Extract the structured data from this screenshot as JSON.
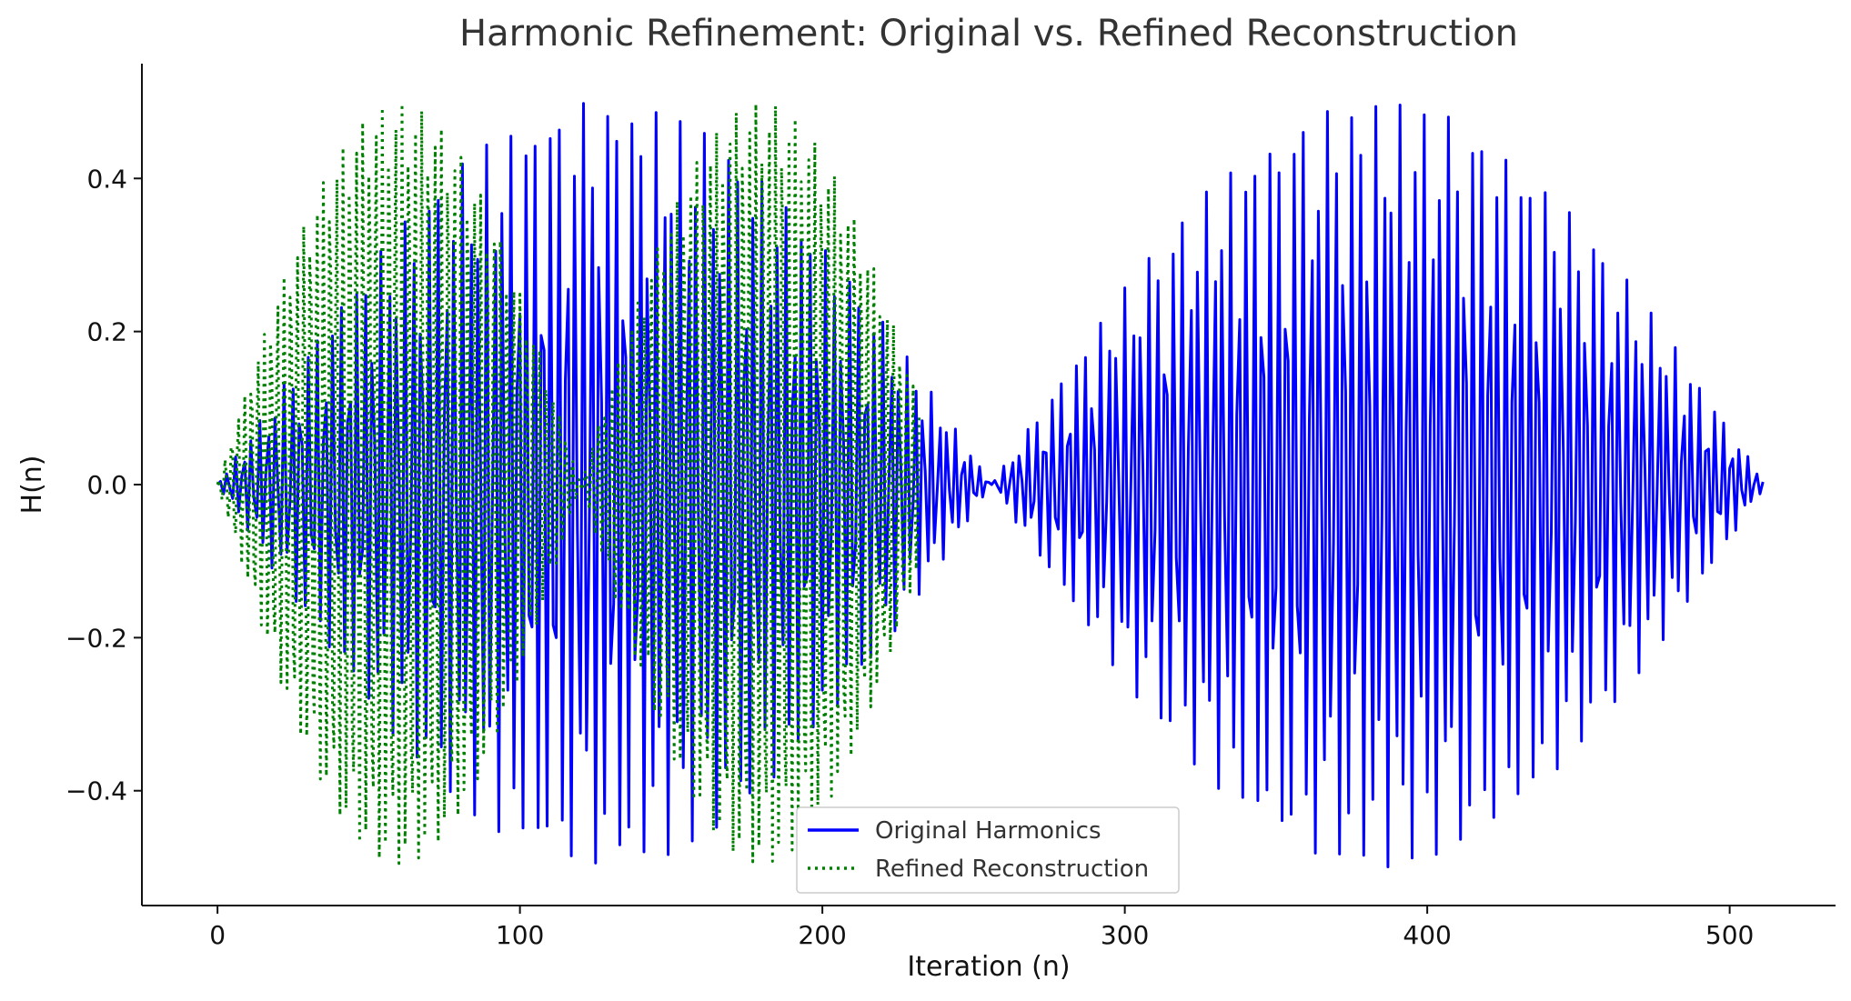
{
  "chart_data": {
    "type": "line",
    "title": "Harmonic Refinement: Original vs. Refined Reconstruction",
    "xlabel": "Iteration (n)",
    "ylabel": "H(n)",
    "xlim": [
      -25,
      535
    ],
    "ylim": [
      -0.55,
      0.55
    ],
    "xticks": [
      0,
      100,
      200,
      300,
      400,
      500
    ],
    "xtick_labels": [
      "0",
      "100",
      "200",
      "300",
      "400",
      "500"
    ],
    "yticks": [
      -0.4,
      -0.2,
      0.0,
      0.2,
      0.4
    ],
    "ytick_labels": [
      "−0.4",
      "−0.2",
      "0.0",
      "0.2",
      "0.4"
    ],
    "grid": false,
    "legend": "lower-center",
    "series": [
      {
        "name": "Original Harmonics",
        "color": "#0000ff",
        "style": "solid",
        "envelope": "0.5*|sin(pi*n/256)|",
        "n_range": [
          0,
          511
        ]
      },
      {
        "name": "Refined Reconstruction",
        "color": "#008000",
        "style": "dotted",
        "envelope": "0.5*|sin(pi*n/120)|",
        "n_range": [
          0,
          232
        ]
      }
    ]
  }
}
